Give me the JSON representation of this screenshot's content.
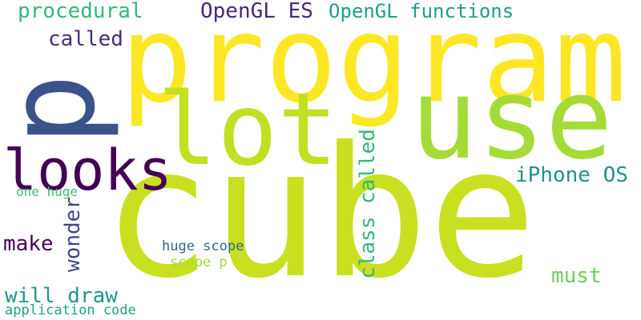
{
  "words": {
    "w_cube": {
      "text": "cube",
      "color": "#c8e020"
    },
    "w_program": {
      "text": "program",
      "color": "#fde725"
    },
    "w_p": {
      "text": "p",
      "color": "#3b528b"
    },
    "w_use": {
      "text": "use",
      "color": "#a5db36"
    },
    "w_lot": {
      "text": "lot",
      "color": "#c2df23"
    },
    "w_looks": {
      "text": "looks",
      "color": "#440154"
    },
    "w_procedural": {
      "text": "procedural",
      "color": "#35b779"
    },
    "w_opengl_es": {
      "text": "OpenGL ES",
      "color": "#482878"
    },
    "w_opengl_functions": {
      "text": "OpenGL functions",
      "color": "#1f9e89"
    },
    "w_called": {
      "text": "called",
      "color": "#472d7b"
    },
    "w_class_called": {
      "text": "class called",
      "color": "#35b779"
    },
    "w_iphone_os": {
      "text": "iPhone OS",
      "color": "#21918c"
    },
    "w_one_huge": {
      "text": "one huge",
      "color": "#3dbc74"
    },
    "w_wonder": {
      "text": "wonder",
      "color": "#3e4989"
    },
    "w_make": {
      "text": "make",
      "color": "#450457"
    },
    "w_huge_scope": {
      "text": "huge scope",
      "color": "#31688e"
    },
    "w_scope_p": {
      "text": "scope p",
      "color": "#a2da37"
    },
    "w_must": {
      "text": "must",
      "color": "#6ece58"
    },
    "w_will_draw": {
      "text": "will draw",
      "color": "#1f988b"
    },
    "w_application_code": {
      "text": "application code",
      "color": "#1fa088"
    }
  }
}
